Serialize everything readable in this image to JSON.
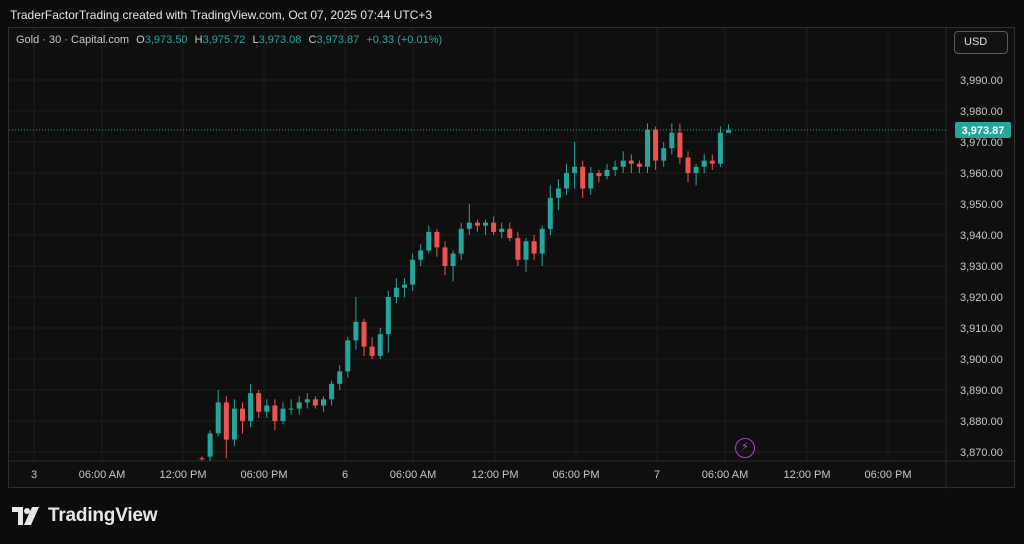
{
  "header": {
    "caption": "TraderFactorTrading created with TradingView.com, Oct 07, 2025 07:44 UTC+3"
  },
  "legend": {
    "symbol": "Gold · 30 · Capital.com",
    "open_label": "O",
    "open": "3,973.50",
    "high_label": "H",
    "high": "3,975.72",
    "low_label": "L",
    "low": "3,973.08",
    "close_label": "C",
    "close": "3,973.87",
    "change": "+0.33 (+0.01%)"
  },
  "currency_button": "USD",
  "footer": {
    "brand": "TradingView"
  },
  "icons": {
    "bolt": "lightning-icon",
    "logo": "tradingview-logo-icon"
  },
  "colors": {
    "up": "#26a69a",
    "down": "#ef5350",
    "last_price": "#26a69a",
    "grid": "#1e1e1e",
    "background": "#0f0f0f"
  },
  "chart_data": {
    "type": "candlestick",
    "price_unit": "USD",
    "y_range": [
      3866,
      3996
    ],
    "y_ticks": [
      "3,990.00",
      "3,980.00",
      "3,970.00",
      "3,960.00",
      "3,950.00",
      "3,940.00",
      "3,930.00",
      "3,920.00",
      "3,910.00",
      "3,900.00",
      "3,890.00",
      "3,880.00",
      "3,870.00"
    ],
    "y_tick_values": [
      3990,
      3980,
      3970,
      3960,
      3950,
      3940,
      3930,
      3920,
      3910,
      3900,
      3890,
      3880,
      3870
    ],
    "x_ticks": [
      "3",
      "06:00 AM",
      "12:00 PM",
      "06:00 PM",
      "6",
      "06:00 AM",
      "12:00 PM",
      "06:00 PM",
      "7",
      "06:00 AM",
      "12:00 PM",
      "06:00 PM"
    ],
    "last_price": 3973.87,
    "last_price_label": "3,973.87",
    "candles": [
      [
        3868,
        3868.6,
        3867.2,
        3867.8
      ],
      [
        3868.5,
        3877,
        3867,
        3876
      ],
      [
        3876,
        3890,
        3875,
        3886
      ],
      [
        3886,
        3888,
        3868,
        3874
      ],
      [
        3874,
        3887,
        3872,
        3884
      ],
      [
        3884,
        3886,
        3876,
        3880
      ],
      [
        3880,
        3892,
        3878,
        3889
      ],
      [
        3889,
        3890,
        3881,
        3883
      ],
      [
        3883,
        3887,
        3881,
        3885
      ],
      [
        3885,
        3887,
        3877,
        3880
      ],
      [
        3880,
        3886,
        3879,
        3884
      ],
      [
        3884,
        3887,
        3882,
        3884
      ],
      [
        3884,
        3888,
        3882,
        3886
      ],
      [
        3886,
        3889,
        3884,
        3887
      ],
      [
        3887,
        3888,
        3884,
        3885
      ],
      [
        3885,
        3888,
        3883,
        3887
      ],
      [
        3887,
        3893,
        3885,
        3892
      ],
      [
        3892,
        3898,
        3890,
        3896
      ],
      [
        3896,
        3907,
        3894,
        3906
      ],
      [
        3906,
        3920,
        3903,
        3912
      ],
      [
        3912,
        3913,
        3901,
        3904
      ],
      [
        3904,
        3907,
        3900,
        3901
      ],
      [
        3901,
        3910,
        3900,
        3908
      ],
      [
        3908,
        3922,
        3902,
        3920
      ],
      [
        3920,
        3926,
        3918,
        3923
      ],
      [
        3923,
        3926,
        3920,
        3924
      ],
      [
        3924,
        3934,
        3922,
        3932
      ],
      [
        3932,
        3937,
        3930,
        3935
      ],
      [
        3935,
        3943,
        3934,
        3941
      ],
      [
        3941,
        3942,
        3933,
        3936
      ],
      [
        3936,
        3938,
        3927,
        3930
      ],
      [
        3930,
        3935,
        3925,
        3934
      ],
      [
        3934,
        3944,
        3932,
        3942
      ],
      [
        3942,
        3950,
        3940,
        3944
      ],
      [
        3944,
        3945,
        3941,
        3943
      ],
      [
        3943,
        3945,
        3940,
        3944
      ],
      [
        3944,
        3946,
        3940,
        3941
      ],
      [
        3941,
        3944,
        3939,
        3942
      ],
      [
        3942,
        3944,
        3938,
        3939
      ],
      [
        3939,
        3941,
        3930,
        3932
      ],
      [
        3932,
        3939,
        3928,
        3938
      ],
      [
        3938,
        3940,
        3932,
        3934
      ],
      [
        3934,
        3943,
        3930,
        3942
      ],
      [
        3942,
        3956,
        3940,
        3952
      ],
      [
        3952,
        3958,
        3948,
        3955
      ],
      [
        3955,
        3963,
        3953,
        3960
      ],
      [
        3960,
        3970,
        3955,
        3962
      ],
      [
        3962,
        3964,
        3952,
        3955
      ],
      [
        3955,
        3962,
        3953,
        3960
      ],
      [
        3960,
        3961,
        3957,
        3959
      ],
      [
        3959,
        3963,
        3958,
        3961
      ],
      [
        3961,
        3964,
        3959,
        3962
      ],
      [
        3962,
        3967,
        3960,
        3964
      ],
      [
        3964,
        3966,
        3960,
        3963
      ],
      [
        3963,
        3964,
        3960,
        3962
      ],
      [
        3962,
        3976,
        3960,
        3974
      ],
      [
        3974,
        3975,
        3961,
        3964
      ],
      [
        3964,
        3970,
        3962,
        3968
      ],
      [
        3968,
        3976,
        3966,
        3973
      ],
      [
        3973,
        3976,
        3963,
        3965
      ],
      [
        3965,
        3967,
        3957,
        3960
      ],
      [
        3960,
        3963,
        3956,
        3962
      ],
      [
        3962,
        3966,
        3960,
        3964
      ],
      [
        3964,
        3966,
        3961,
        3963
      ],
      [
        3963,
        3975,
        3962,
        3973
      ],
      [
        3973,
        3975.7,
        3973,
        3973.9
      ]
    ]
  }
}
